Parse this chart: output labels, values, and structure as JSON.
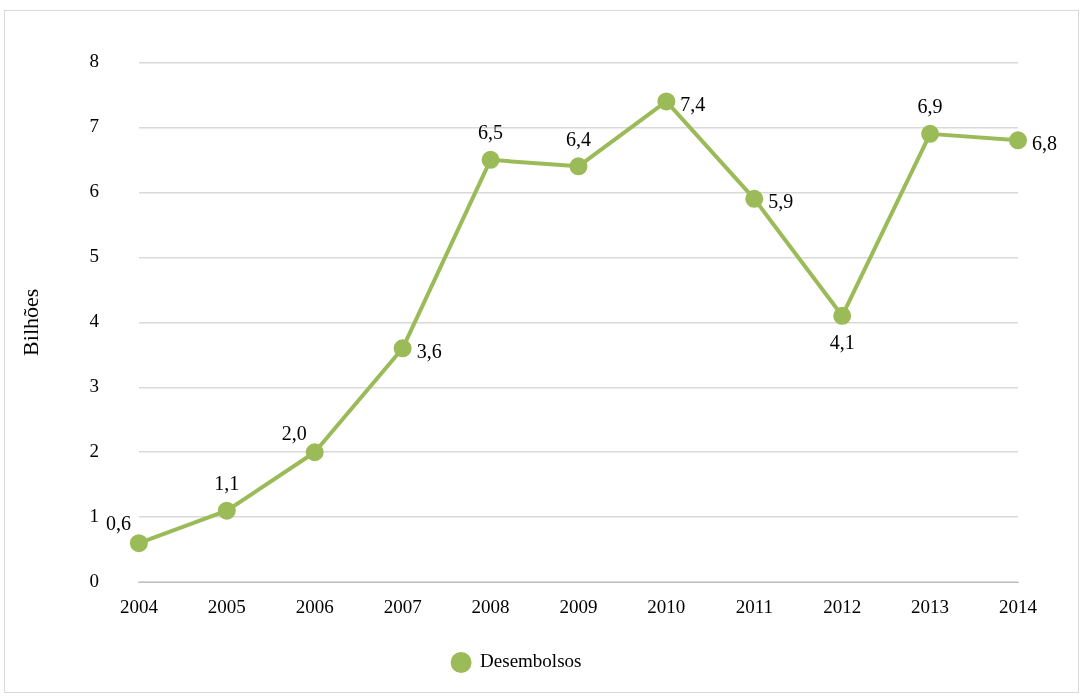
{
  "chart_data": {
    "type": "line",
    "ylabel": "Bilhões",
    "categories": [
      "2004",
      "2005",
      "2006",
      "2007",
      "2008",
      "2009",
      "2010",
      "2011",
      "2012",
      "2013",
      "2014"
    ],
    "series": [
      {
        "name": "Desembolsos",
        "color": "#9bbb59",
        "values": [
          0.6,
          1.1,
          2.0,
          3.6,
          6.5,
          6.4,
          7.4,
          5.9,
          4.1,
          6.9,
          6.8
        ],
        "value_labels": [
          "0,6",
          "1,1",
          "2,0",
          "3,6",
          "6,5",
          "6,4",
          "7,4",
          "5,9",
          "4,1",
          "6,9",
          "6,8"
        ]
      }
    ],
    "ylim": [
      0,
      8
    ],
    "yticks": [
      0,
      1,
      2,
      3,
      4,
      5,
      6,
      7,
      8
    ],
    "grid": "y",
    "legend": "bottom",
    "marker": "circle",
    "line_style": "solid"
  }
}
